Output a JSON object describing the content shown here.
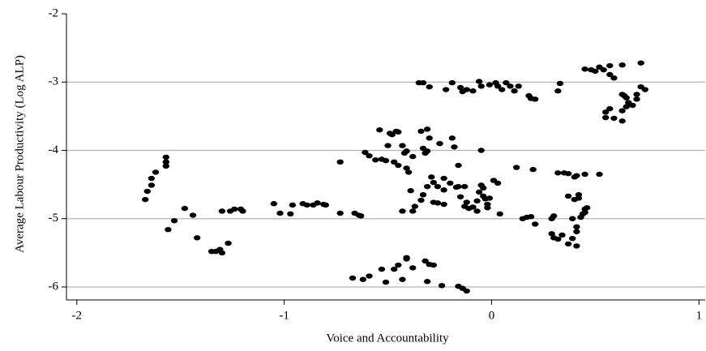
{
  "chart_data": {
    "type": "scatter",
    "x_label": "Voice and Accountability",
    "y_label": "Average Labour Productivity (Log ALP)",
    "color": "#000000",
    "grid": true,
    "xlim": [
      -2.05,
      1.03
    ],
    "ylim": [
      -6.19,
      -2
    ],
    "xticks": [
      -2,
      -1,
      0,
      1
    ],
    "yticks": [
      -2,
      -3,
      -4,
      -5,
      -6
    ],
    "x": [
      -1.67,
      -1.66,
      -1.64,
      -1.64,
      -1.62,
      -1.57,
      -1.57,
      -1.57,
      -1.56,
      -1.53,
      -1.48,
      -1.44,
      -1.42,
      -1.35,
      -1.33,
      -1.31,
      -1.3,
      -1.27,
      -1.3,
      -1.26,
      -1.24,
      -1.21,
      -1.2,
      -1.05,
      -1.02,
      -0.97,
      -0.96,
      -0.91,
      -0.89,
      -0.86,
      -0.84,
      -0.81,
      -0.8,
      -0.73,
      -0.73,
      -0.66,
      -0.64,
      -0.63,
      -0.67,
      -0.62,
      -0.59,
      -0.53,
      -0.51,
      -0.47,
      -0.45,
      -0.43,
      -0.41,
      -0.41,
      -0.38,
      -0.32,
      -0.3,
      -0.28,
      -0.31,
      -0.24,
      -0.16,
      -0.14,
      -0.12,
      -0.61,
      -0.59,
      -0.56,
      -0.54,
      -0.53,
      -0.51,
      -0.5,
      -0.49,
      -0.48,
      -0.46,
      -0.45,
      -0.47,
      -0.45,
      -0.43,
      -0.42,
      -0.41,
      -0.41,
      -0.4,
      -0.38,
      -0.34,
      -0.31,
      -0.33,
      -0.32,
      -0.31,
      -0.3,
      -0.25,
      -0.19,
      -0.18,
      -0.16,
      -0.05,
      -0.38,
      -0.43,
      -0.37,
      -0.34,
      -0.33,
      -0.39,
      -0.29,
      -0.28,
      -0.26,
      -0.23,
      -0.31,
      -0.23,
      -0.2,
      -0.17,
      -0.16,
      -0.13,
      -0.15,
      -0.13,
      -0.11,
      -0.09,
      -0.07,
      -0.06,
      -0.05,
      -0.04,
      -0.04,
      -0.03,
      -0.02,
      -0.02,
      -0.01,
      0.01,
      0.03,
      0.04,
      -0.07,
      -0.12,
      -0.28,
      -0.26,
      -0.23,
      -0.35,
      -0.33,
      -0.3,
      -0.22,
      -0.19,
      -0.15,
      -0.14,
      -0.12,
      -0.09,
      -0.06,
      -0.05,
      -0.01,
      0.02,
      0.03,
      0.05,
      0.07,
      0.09,
      0.11,
      0.13,
      0.18,
      0.19,
      0.21,
      0.12,
      0.2,
      0.15,
      0.17,
      0.19,
      0.21,
      0.29,
      0.3,
      0.32,
      0.34,
      0.37,
      0.39,
      0.41,
      0.41,
      0.39,
      0.41,
      0.29,
      0.3,
      0.32,
      0.35,
      0.37,
      0.4,
      0.41,
      0.45,
      0.52,
      0.37,
      0.4,
      0.42,
      0.42,
      0.43,
      0.44,
      0.45,
      0.45,
      0.46,
      0.33,
      0.32,
      0.45,
      0.48,
      0.5,
      0.52,
      0.54,
      0.57,
      0.59,
      0.57,
      0.63,
      0.72,
      0.63,
      0.65,
      0.66,
      0.68,
      0.7,
      0.7,
      0.72,
      0.74,
      0.65,
      0.63,
      0.55,
      0.55,
      0.57,
      0.59,
      0.63,
      0.64
    ],
    "y": [
      -4.72,
      -4.6,
      -4.51,
      -4.41,
      -4.32,
      -4.1,
      -4.17,
      -4.23,
      -5.16,
      -5.03,
      -4.85,
      -4.95,
      -5.28,
      -5.48,
      -5.48,
      -5.45,
      -5.5,
      -5.36,
      -4.89,
      -4.89,
      -4.86,
      -4.86,
      -4.89,
      -4.78,
      -4.92,
      -4.93,
      -4.8,
      -4.78,
      -4.8,
      -4.8,
      -4.77,
      -4.79,
      -4.8,
      -4.17,
      -4.92,
      -4.92,
      -4.95,
      -4.96,
      -5.87,
      -5.89,
      -5.84,
      -5.74,
      -5.93,
      -5.74,
      -5.68,
      -5.89,
      -5.57,
      -5.59,
      -5.72,
      -5.62,
      -5.67,
      -5.68,
      -5.92,
      -5.98,
      -5.99,
      -6.02,
      -6.06,
      -4.03,
      -4.08,
      -4.14,
      -3.7,
      -4.13,
      -4.15,
      -3.93,
      -3.75,
      -3.77,
      -3.72,
      -3.73,
      -4.17,
      -4.22,
      -3.93,
      -4.04,
      -4.01,
      -4.26,
      -4.32,
      -4.09,
      -3.72,
      -3.69,
      -3.97,
      -4.04,
      -4.01,
      -3.82,
      -3.9,
      -3.82,
      -3.95,
      -4.22,
      -4.0,
      -4.89,
      -4.89,
      -4.82,
      -4.73,
      -4.65,
      -4.59,
      -4.39,
      -4.47,
      -4.53,
      -4.58,
      -4.53,
      -4.41,
      -4.48,
      -4.54,
      -4.53,
      -4.53,
      -4.68,
      -4.82,
      -4.85,
      -4.83,
      -4.74,
      -4.61,
      -4.51,
      -4.55,
      -4.67,
      -4.71,
      -4.79,
      -4.84,
      -4.7,
      -4.44,
      -4.48,
      -4.93,
      -4.89,
      -4.76,
      -4.76,
      -4.77,
      -4.79,
      -3.01,
      -3.01,
      -3.07,
      -3.11,
      -3.01,
      -3.08,
      -3.14,
      -3.11,
      -3.13,
      -2.99,
      -3.06,
      -3.04,
      -3.01,
      -3.06,
      -3.11,
      -3.01,
      -3.06,
      -3.13,
      -3.06,
      -3.2,
      -3.24,
      -3.25,
      -4.25,
      -4.28,
      -5.0,
      -4.98,
      -4.97,
      -5.08,
      -5.22,
      -5.28,
      -5.3,
      -5.24,
      -5.37,
      -5.29,
      -5.19,
      -5.12,
      -5.0,
      -5.4,
      -5.0,
      -4.96,
      -4.33,
      -4.33,
      -4.34,
      -4.39,
      -4.37,
      -4.35,
      -4.35,
      -4.67,
      -4.72,
      -4.7,
      -4.65,
      -4.98,
      -4.93,
      -4.91,
      -4.86,
      -4.84,
      -3.02,
      -3.13,
      -2.81,
      -2.82,
      -2.84,
      -2.78,
      -2.82,
      -2.89,
      -2.94,
      -2.76,
      -2.75,
      -2.72,
      -3.18,
      -3.23,
      -3.3,
      -3.34,
      -3.25,
      -3.18,
      -3.07,
      -3.11,
      -3.36,
      -3.42,
      -3.52,
      -3.44,
      -3.39,
      -3.53,
      -3.57,
      -3.2
    ]
  }
}
